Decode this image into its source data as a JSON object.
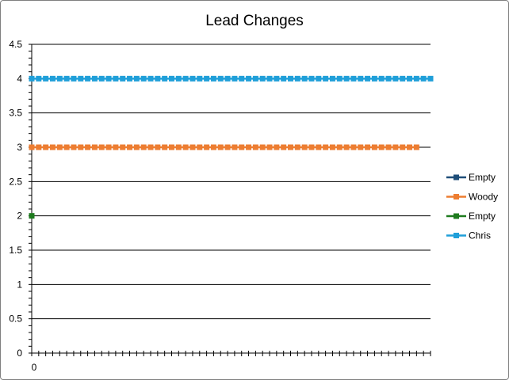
{
  "chart_data": {
    "type": "line",
    "title": "Lead Changes",
    "xlabel": "",
    "ylabel": "",
    "ylim": [
      0,
      4.5
    ],
    "y_ticks": [
      0,
      0.5,
      1,
      1.5,
      2,
      2.5,
      3,
      3.5,
      4,
      4.5
    ],
    "x_tick_labels": [
      "0"
    ],
    "x_count": 58,
    "grid": true,
    "legend_position": "right",
    "series": [
      {
        "name": "Empty",
        "color": "#1f4e79",
        "marker": "square",
        "values": []
      },
      {
        "name": "Woody",
        "color": "#ed7d31",
        "marker": "square",
        "values": [
          3,
          3,
          3,
          3,
          3,
          3,
          3,
          3,
          3,
          3,
          3,
          3,
          3,
          3,
          3,
          3,
          3,
          3,
          3,
          3,
          3,
          3,
          3,
          3,
          3,
          3,
          3,
          3,
          3,
          3,
          3,
          3,
          3,
          3,
          3,
          3,
          3,
          3,
          3,
          3,
          3,
          3,
          3,
          3,
          3,
          3,
          3,
          3,
          3,
          3,
          3,
          3,
          3,
          3,
          3,
          3
        ]
      },
      {
        "name": "Empty",
        "color": "#1e7b1e",
        "marker": "square",
        "values": [
          2
        ]
      },
      {
        "name": "Chris",
        "color": "#1f9fd9",
        "marker": "square",
        "values": [
          4,
          4,
          4,
          4,
          4,
          4,
          4,
          4,
          4,
          4,
          4,
          4,
          4,
          4,
          4,
          4,
          4,
          4,
          4,
          4,
          4,
          4,
          4,
          4,
          4,
          4,
          4,
          4,
          4,
          4,
          4,
          4,
          4,
          4,
          4,
          4,
          4,
          4,
          4,
          4,
          4,
          4,
          4,
          4,
          4,
          4,
          4,
          4,
          4,
          4,
          4,
          4,
          4,
          4,
          4,
          4,
          4,
          4
        ]
      }
    ]
  }
}
